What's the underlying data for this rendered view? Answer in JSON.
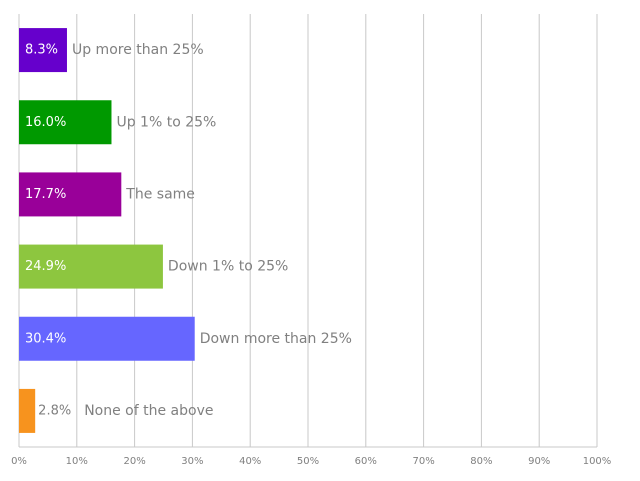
{
  "chart_data": {
    "type": "hbar",
    "categories": [
      "Up more than 25%",
      "Up 1% to 25%",
      "The same",
      "Down 1% to 25%",
      "Down more than 25%",
      "None of the above"
    ],
    "values": [
      8.3,
      16.0,
      17.7,
      24.9,
      30.4,
      2.8
    ],
    "value_labels": [
      "8.3%",
      "16.0%",
      "17.7%",
      "24.9%",
      "30.4%",
      "2.8%"
    ],
    "colors": [
      "#6600cc",
      "#009900",
      "#990099",
      "#8dc63f",
      "#6666ff",
      "#f7931e"
    ],
    "xlim": [
      0,
      100
    ],
    "xticks": [
      {
        "value": 0,
        "label": "0%"
      },
      {
        "value": 10,
        "label": "10%"
      },
      {
        "value": 20,
        "label": "20%"
      },
      {
        "value": 30,
        "label": "30%"
      },
      {
        "value": 40,
        "label": "40%"
      },
      {
        "value": 50,
        "label": "50%"
      },
      {
        "value": 60,
        "label": "60%"
      },
      {
        "value": 70,
        "label": "70%"
      },
      {
        "value": 80,
        "label": "80%"
      },
      {
        "value": 90,
        "label": "90%"
      },
      {
        "value": 100,
        "label": "100%"
      }
    ],
    "grid": true
  }
}
